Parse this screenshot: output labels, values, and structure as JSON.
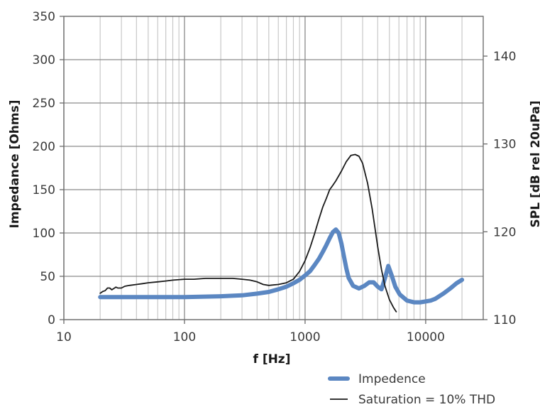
{
  "chart_data": {
    "type": "line",
    "x_scale": "log",
    "xlim": [
      10,
      30000
    ],
    "x_ticks": [
      10,
      100,
      1000,
      10000
    ],
    "x_tick_labels": [
      "10",
      "100",
      "1000",
      "10000"
    ],
    "xlabel": "f [Hz]",
    "ylabel_left": "Impedance [Ohms]",
    "ylim_left": [
      0,
      350
    ],
    "y_ticks_left": [
      0,
      50,
      100,
      150,
      200,
      250,
      300,
      350
    ],
    "y_tick_labels_left": [
      "0",
      "50",
      "100",
      "150",
      "200",
      "250",
      "300",
      "350"
    ],
    "ylabel_right": "SPL [dB rel 20uPa]",
    "ylim_right": [
      110,
      140
    ],
    "y_ticks_right": [
      110,
      120,
      130,
      140
    ],
    "y_tick_labels_right": [
      "110",
      "120",
      "130",
      "140"
    ],
    "grid": true,
    "legend_position": "bottom-right",
    "series": [
      {
        "name": "Impedence",
        "axis": "left",
        "color": "#5b87c2",
        "points": [
          [
            20,
            26
          ],
          [
            30,
            26
          ],
          [
            50,
            26
          ],
          [
            100,
            26
          ],
          [
            200,
            27
          ],
          [
            300,
            28
          ],
          [
            400,
            30
          ],
          [
            500,
            32
          ],
          [
            600,
            35
          ],
          [
            700,
            38
          ],
          [
            800,
            42
          ],
          [
            900,
            46
          ],
          [
            1000,
            51
          ],
          [
            1100,
            56
          ],
          [
            1200,
            63
          ],
          [
            1300,
            70
          ],
          [
            1400,
            78
          ],
          [
            1500,
            86
          ],
          [
            1600,
            94
          ],
          [
            1700,
            101
          ],
          [
            1800,
            104
          ],
          [
            1900,
            100
          ],
          [
            2000,
            88
          ],
          [
            2100,
            73
          ],
          [
            2200,
            59
          ],
          [
            2300,
            48
          ],
          [
            2500,
            39
          ],
          [
            2800,
            36
          ],
          [
            3100,
            39
          ],
          [
            3400,
            43
          ],
          [
            3700,
            43
          ],
          [
            4000,
            38
          ],
          [
            4300,
            35
          ],
          [
            4600,
            48
          ],
          [
            4900,
            62
          ],
          [
            5200,
            52
          ],
          [
            5600,
            38
          ],
          [
            6100,
            29
          ],
          [
            7000,
            22
          ],
          [
            8000,
            20
          ],
          [
            9000,
            20
          ],
          [
            10000,
            21
          ],
          [
            11000,
            22
          ],
          [
            12000,
            24
          ],
          [
            14000,
            30
          ],
          [
            16000,
            36
          ],
          [
            18000,
            42
          ],
          [
            20000,
            46
          ]
        ]
      },
      {
        "name": "Saturation = 10% THD",
        "axis": "right",
        "color": "#1a1a1a",
        "points": [
          [
            20,
            113.0
          ],
          [
            21,
            113.2
          ],
          [
            22,
            113.3
          ],
          [
            23,
            113.6
          ],
          [
            24,
            113.6
          ],
          [
            25,
            113.4
          ],
          [
            27,
            113.7
          ],
          [
            28,
            113.6
          ],
          [
            30,
            113.6
          ],
          [
            32,
            113.8
          ],
          [
            35,
            113.9
          ],
          [
            40,
            114.0
          ],
          [
            45,
            114.1
          ],
          [
            50,
            114.2
          ],
          [
            60,
            114.3
          ],
          [
            70,
            114.4
          ],
          [
            80,
            114.5
          ],
          [
            100,
            114.6
          ],
          [
            120,
            114.6
          ],
          [
            150,
            114.7
          ],
          [
            200,
            114.7
          ],
          [
            250,
            114.7
          ],
          [
            300,
            114.6
          ],
          [
            350,
            114.5
          ],
          [
            400,
            114.3
          ],
          [
            450,
            114.0
          ],
          [
            500,
            113.9
          ],
          [
            600,
            114.0
          ],
          [
            700,
            114.2
          ],
          [
            800,
            114.6
          ],
          [
            900,
            115.5
          ],
          [
            1000,
            116.7
          ],
          [
            1100,
            118.2
          ],
          [
            1200,
            119.8
          ],
          [
            1300,
            121.4
          ],
          [
            1400,
            122.8
          ],
          [
            1500,
            123.8
          ],
          [
            1600,
            124.8
          ],
          [
            1700,
            125.3
          ],
          [
            1800,
            125.8
          ],
          [
            2000,
            126.9
          ],
          [
            2200,
            128.0
          ],
          [
            2400,
            128.7
          ],
          [
            2600,
            128.8
          ],
          [
            2800,
            128.6
          ],
          [
            3000,
            127.8
          ],
          [
            3300,
            125.5
          ],
          [
            3600,
            122.6
          ],
          [
            4000,
            118.3
          ],
          [
            4300,
            115.7
          ],
          [
            4600,
            113.8
          ],
          [
            5000,
            112.3
          ],
          [
            5400,
            111.4
          ],
          [
            5700,
            110.9
          ]
        ]
      }
    ]
  }
}
